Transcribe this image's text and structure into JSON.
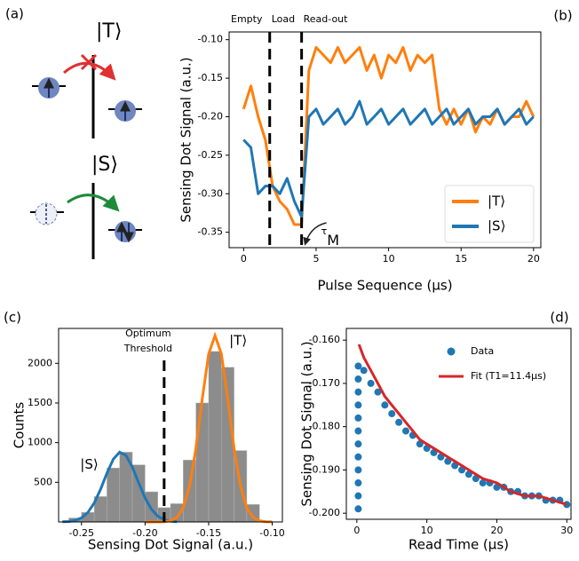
{
  "panel_a": {
    "label": "(a)",
    "states": [
      "|T⟩",
      "|S⟩"
    ]
  },
  "chart_data": [
    {
      "type": "line",
      "panel_label": "(b)",
      "xlabel": "Pulse Sequence (μs)",
      "ylabel": "Sensing Dot Signal (a.u.)",
      "xlim": [
        -1,
        20.5
      ],
      "ylim": [
        -0.37,
        -0.09
      ],
      "xticks": [
        0,
        5,
        10,
        15,
        20
      ],
      "yticks": [
        {
          "value": -0.35,
          "label": "-0.35"
        },
        {
          "value": -0.3,
          "label": "-0.30"
        },
        {
          "value": -0.25,
          "label": "-0.25"
        },
        {
          "value": -0.2,
          "label": "-0.20"
        },
        {
          "value": -0.15,
          "label": "-0.15"
        },
        {
          "value": -0.1,
          "label": "-0.10"
        }
      ],
      "x": [
        0,
        0.5,
        1,
        1.5,
        2,
        2.5,
        3,
        3.5,
        4,
        4.5,
        5,
        5.5,
        6,
        6.5,
        7,
        7.5,
        8,
        8.5,
        9,
        9.5,
        10,
        10.5,
        11,
        11.5,
        12,
        12.5,
        13,
        13.5,
        14,
        14.5,
        15,
        15.5,
        16,
        16.5,
        17,
        17.5,
        18,
        18.5,
        19,
        19.5,
        20
      ],
      "series": [
        {
          "name": "|T⟩",
          "color": "#ff7f0e",
          "values": [
            -0.19,
            -0.16,
            -0.2,
            -0.23,
            -0.29,
            -0.31,
            -0.32,
            -0.34,
            -0.34,
            -0.14,
            -0.11,
            -0.12,
            -0.13,
            -0.11,
            -0.13,
            -0.12,
            -0.11,
            -0.14,
            -0.12,
            -0.15,
            -0.12,
            -0.13,
            -0.11,
            -0.14,
            -0.12,
            -0.13,
            -0.12,
            -0.19,
            -0.21,
            -0.19,
            -0.21,
            -0.19,
            -0.22,
            -0.2,
            -0.21,
            -0.19,
            -0.21,
            -0.2,
            -0.2,
            -0.18,
            -0.2
          ]
        },
        {
          "name": "|S⟩",
          "color": "#1f77b4",
          "values": [
            -0.23,
            -0.24,
            -0.3,
            -0.29,
            -0.29,
            -0.3,
            -0.28,
            -0.31,
            -0.33,
            -0.2,
            -0.19,
            -0.21,
            -0.2,
            -0.19,
            -0.21,
            -0.2,
            -0.18,
            -0.21,
            -0.2,
            -0.19,
            -0.21,
            -0.2,
            -0.19,
            -0.21,
            -0.2,
            -0.19,
            -0.21,
            -0.2,
            -0.19,
            -0.21,
            -0.2,
            -0.19,
            -0.21,
            -0.2,
            -0.2,
            -0.19,
            -0.21,
            -0.2,
            -0.19,
            -0.21,
            -0.2
          ]
        }
      ],
      "vlines": [
        1.8,
        4
      ],
      "region_labels": [
        "Empty",
        "Load",
        "Read-out"
      ],
      "annotation": {
        "symbol": "τ",
        "subscript": "M"
      },
      "legend": "lower right"
    },
    {
      "type": "histogram",
      "panel_label": "(c)",
      "xlabel": "Sensing Dot Signal (a.u.)",
      "ylabel": "Counts",
      "xlim": [
        -0.268,
        -0.092
      ],
      "ylim": [
        0,
        2440
      ],
      "xticks": [
        {
          "value": -0.25,
          "label": "-0.25"
        },
        {
          "value": -0.2,
          "label": "-0.20"
        },
        {
          "value": -0.15,
          "label": "-0.15"
        },
        {
          "value": -0.1,
          "label": "-0.10"
        }
      ],
      "yticks": [
        500,
        1000,
        1500,
        2000
      ],
      "bins": [
        -0.26,
        -0.25,
        -0.24,
        -0.23,
        -0.22,
        -0.21,
        -0.2,
        -0.19,
        -0.18,
        -0.17,
        -0.16,
        -0.15,
        -0.14,
        -0.13,
        -0.12,
        -0.11
      ],
      "counts": [
        50,
        120,
        320,
        680,
        880,
        720,
        380,
        180,
        230,
        780,
        1500,
        2150,
        1950,
        900,
        220
      ],
      "color": "#8c8c8c",
      "series": [
        {
          "name": "|S⟩",
          "color": "#1f77b4",
          "x": [
            -0.265,
            -0.26,
            -0.255,
            -0.25,
            -0.245,
            -0.24,
            -0.235,
            -0.23,
            -0.225,
            -0.22,
            -0.215,
            -0.21,
            -0.205,
            -0.2,
            -0.195,
            -0.19,
            -0.185,
            -0.18,
            -0.175
          ],
          "values": [
            2,
            6,
            19,
            51,
            119,
            239,
            413,
            615,
            791,
            880,
            840,
            692,
            493,
            302,
            160,
            73,
            29,
            10,
            3
          ]
        },
        {
          "name": "|T⟩",
          "color": "#ff7f0e",
          "x": [
            -0.2,
            -0.195,
            -0.19,
            -0.185,
            -0.18,
            -0.175,
            -0.17,
            -0.165,
            -0.16,
            -0.155,
            -0.15,
            -0.145,
            -0.14,
            -0.135,
            -0.13,
            -0.125,
            -0.12,
            -0.115,
            -0.11,
            -0.105,
            -0.1
          ],
          "values": [
            0,
            0,
            1,
            3,
            15,
            57,
            178,
            451,
            928,
            1555,
            2120,
            2350,
            2120,
            1555,
            928,
            451,
            178,
            57,
            15,
            3,
            1
          ]
        }
      ],
      "threshold": -0.185,
      "threshold_label": [
        "Optimum",
        "Threshold"
      ]
    },
    {
      "type": "scatter",
      "panel_label": "(d)",
      "xlabel": "Read Time (μs)",
      "ylabel": "Sensing Dot Signal (a.u.)",
      "xlim": [
        -1.5,
        30.6
      ],
      "ylim": [
        -0.2014,
        -0.1573
      ],
      "xticks": [
        0,
        10,
        20,
        30
      ],
      "yticks": [
        {
          "value": -0.2,
          "label": "-0.200"
        },
        {
          "value": -0.19,
          "label": "-0.190"
        },
        {
          "value": -0.18,
          "label": "-0.180"
        },
        {
          "value": -0.17,
          "label": "-0.170"
        },
        {
          "value": -0.16,
          "label": "-0.160"
        }
      ],
      "series": [
        {
          "name": "Data",
          "color": "#1f77b4",
          "kind": "scatter",
          "x": [
            0.2,
            0.2,
            0.2,
            0.2,
            0.2,
            0.2,
            0.2,
            0.2,
            0.2,
            0.2,
            0.2,
            0.2,
            1,
            2,
            3,
            4,
            5,
            6,
            7,
            8,
            9,
            10,
            11,
            12,
            13,
            14,
            15,
            16,
            17,
            18,
            19,
            20,
            21,
            22,
            23,
            24,
            25,
            26,
            27,
            28,
            29,
            30
          ],
          "values": [
            -0.199,
            -0.196,
            -0.193,
            -0.19,
            -0.187,
            -0.184,
            -0.181,
            -0.178,
            -0.175,
            -0.172,
            -0.169,
            -0.166,
            -0.167,
            -0.17,
            -0.172,
            -0.175,
            -0.177,
            -0.179,
            -0.181,
            -0.182,
            -0.184,
            -0.185,
            -0.186,
            -0.187,
            -0.188,
            -0.189,
            -0.19,
            -0.191,
            -0.192,
            -0.193,
            -0.193,
            -0.194,
            -0.194,
            -0.195,
            -0.195,
            -0.196,
            -0.196,
            -0.196,
            -0.197,
            -0.197,
            -0.197,
            -0.198
          ]
        },
        {
          "name": "Fit (T1=11.4μs)",
          "color": "#d62728",
          "kind": "line",
          "x": [
            0.3,
            1,
            2,
            3,
            4,
            5,
            6,
            7,
            8,
            9,
            10,
            12,
            14,
            16,
            18,
            20,
            22,
            24,
            26,
            28,
            30
          ],
          "values": [
            -0.161,
            -0.164,
            -0.167,
            -0.17,
            -0.173,
            -0.175,
            -0.177,
            -0.179,
            -0.181,
            -0.183,
            -0.184,
            -0.186,
            -0.188,
            -0.19,
            -0.192,
            -0.193,
            -0.195,
            -0.196,
            -0.196,
            -0.197,
            -0.198
          ]
        }
      ],
      "legend": "upper right"
    }
  ]
}
